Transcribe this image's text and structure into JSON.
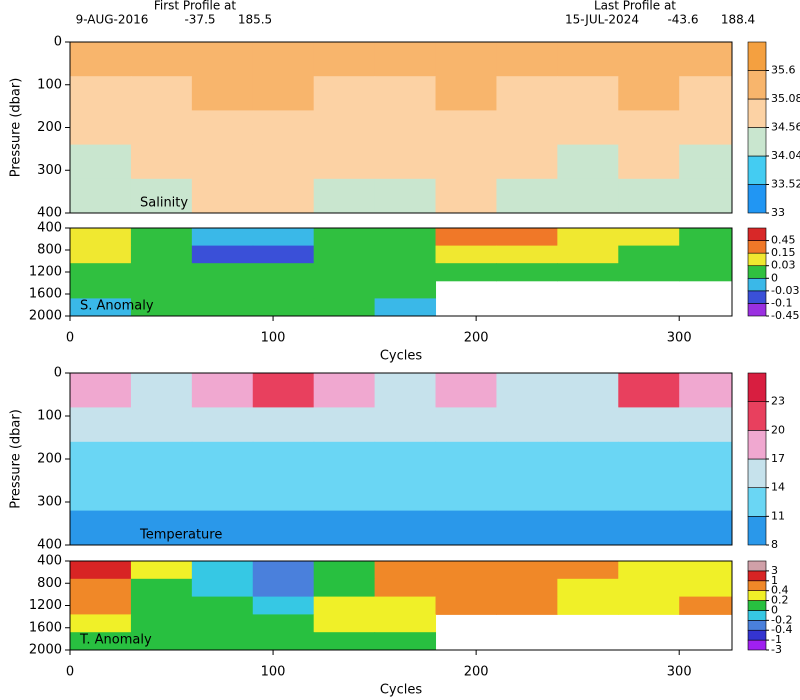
{
  "header": {
    "first_title": "First Profile at",
    "first_date": "9-AUG-2016",
    "first_lat": -37.5,
    "first_lon": 185.5,
    "last_title": "Last Profile at",
    "last_date": "15-JUL-2024",
    "last_lat": -43.6,
    "last_lon": 188.4
  },
  "chart_data": [
    {
      "type": "heatmap",
      "label": "Salinity",
      "ylabel": "Pressure (dbar)",
      "x": [
        15,
        45,
        75,
        105,
        135,
        165,
        195,
        225,
        255,
        285,
        315
      ],
      "y": [
        40,
        120,
        200,
        280,
        360
      ],
      "z": [
        [
          35.3,
          35.2,
          35.3,
          35.4,
          35.3,
          35.2,
          35.3,
          35.2,
          35.1,
          35.3,
          35.2
        ],
        [
          35.0,
          35.0,
          35.1,
          35.1,
          35.0,
          35.0,
          35.1,
          35.0,
          34.9,
          35.1,
          35.0
        ],
        [
          34.8,
          34.7,
          34.9,
          34.9,
          34.8,
          34.8,
          34.9,
          34.8,
          34.7,
          34.9,
          34.7
        ],
        [
          34.5,
          34.6,
          34.7,
          34.7,
          34.6,
          34.6,
          34.7,
          34.6,
          34.5,
          34.6,
          34.5
        ],
        [
          34.5,
          34.5,
          34.6,
          34.6,
          34.5,
          34.5,
          34.6,
          34.5,
          34.5,
          34.5,
          34.5
        ]
      ],
      "xlim": [
        0,
        326
      ],
      "ylim": [
        400,
        0
      ],
      "yticks": [
        0,
        100,
        200,
        300,
        400
      ],
      "colorbar": {
        "levels": [
          33,
          33.52,
          34.04,
          34.56,
          35.08,
          35.6
        ],
        "colors": [
          "#2196f3",
          "#44ccf2",
          "#c9e6cf",
          "#fcd2a4",
          "#f8b56c",
          "#f4a040"
        ]
      }
    },
    {
      "type": "heatmap",
      "label": "S. Anomaly",
      "xlabel": "Cycles",
      "x": [
        15,
        45,
        75,
        105,
        135,
        165,
        195,
        225,
        255,
        285,
        315
      ],
      "y": [
        560,
        880,
        1200,
        1520,
        1840
      ],
      "z": [
        [
          0.1,
          0.0,
          -0.02,
          -0.02,
          0.0,
          0.02,
          0.15,
          0.15,
          0.1,
          0.05,
          0.02
        ],
        [
          0.03,
          0.0,
          -0.05,
          -0.05,
          0.0,
          0.0,
          0.05,
          0.05,
          0.03,
          0.02,
          0.0
        ],
        [
          0.01,
          0.02,
          0.01,
          0.0,
          0.02,
          0.01,
          0.0,
          0.0,
          0.0,
          0.01,
          0.0
        ],
        [
          0.0,
          0.01,
          0.02,
          0.02,
          0.01,
          0.0,
          null,
          null,
          null,
          null,
          null
        ],
        [
          -0.01,
          0.0,
          0.0,
          0.01,
          0.0,
          -0.01,
          null,
          null,
          null,
          null,
          null
        ]
      ],
      "xlim": [
        0,
        326
      ],
      "ylim": [
        2000,
        400
      ],
      "xticks": [
        0,
        100,
        200,
        300
      ],
      "yticks": [
        400,
        800,
        1200,
        1600,
        2000
      ],
      "colorbar": {
        "levels": [
          -0.45,
          -0.1,
          -0.03,
          0,
          0.03,
          0.15,
          0.45
        ],
        "colors": [
          "#9a30e0",
          "#3a50d8",
          "#3ab8e8",
          "#30c040",
          "#f0e830",
          "#f07828",
          "#d82828"
        ]
      }
    },
    {
      "type": "heatmap",
      "label": "Temperature",
      "ylabel": "Pressure (dbar)",
      "x": [
        15,
        45,
        75,
        105,
        135,
        165,
        195,
        225,
        255,
        285,
        315
      ],
      "y": [
        40,
        120,
        200,
        280,
        360
      ],
      "z": [
        [
          19,
          16,
          18,
          20,
          17,
          15,
          19,
          15,
          16,
          20,
          17
        ],
        [
          15,
          14,
          15,
          16,
          15,
          14,
          15,
          14,
          14,
          15,
          14
        ],
        [
          13,
          12,
          13,
          13,
          12,
          12,
          13,
          12,
          12,
          13,
          12
        ],
        [
          11,
          11,
          12,
          11,
          11,
          11,
          12,
          11,
          11,
          11,
          11
        ],
        [
          10,
          10,
          10.5,
          10,
          10,
          10,
          10.5,
          10,
          10,
          10,
          10
        ]
      ],
      "xlim": [
        0,
        326
      ],
      "ylim": [
        400,
        0
      ],
      "yticks": [
        0,
        100,
        200,
        300,
        400
      ],
      "colorbar": {
        "levels": [
          8,
          11,
          14,
          17,
          20,
          23
        ],
        "colors": [
          "#2a98ea",
          "#6ad6f4",
          "#c6e2ec",
          "#f0a8d0",
          "#e8405e",
          "#d81e40"
        ]
      }
    },
    {
      "type": "heatmap",
      "label": "T. Anomaly",
      "xlabel": "Cycles",
      "x": [
        15,
        45,
        75,
        105,
        135,
        165,
        195,
        225,
        255,
        285,
        315
      ],
      "y": [
        560,
        880,
        1200,
        1520,
        1840
      ],
      "z": [
        [
          1,
          0.2,
          -0.2,
          -0.4,
          0.0,
          0.5,
          0.6,
          0.5,
          0.4,
          0.2,
          0.3
        ],
        [
          0.5,
          0.0,
          -0.2,
          -0.3,
          0.0,
          0.4,
          0.5,
          0.4,
          0.3,
          0.2,
          0.3
        ],
        [
          0.5,
          0.1,
          0.0,
          -0.2,
          0.2,
          0.3,
          0.4,
          0.4,
          0.3,
          0.2,
          0.4
        ],
        [
          0.3,
          0.1,
          0.0,
          0.0,
          0.2,
          0.3,
          null,
          null,
          null,
          null,
          null
        ],
        [
          0.0,
          0.1,
          0.0,
          0.0,
          0.1,
          0.0,
          null,
          null,
          null,
          null,
          null
        ]
      ],
      "xlim": [
        0,
        326
      ],
      "ylim": [
        2000,
        400
      ],
      "xticks": [
        0,
        100,
        200,
        300
      ],
      "yticks": [
        400,
        800,
        1200,
        1600,
        2000
      ],
      "colorbar": {
        "levels": [
          -3,
          -1,
          -0.4,
          -0.2,
          0,
          0.2,
          0.4,
          1,
          3
        ],
        "colors": [
          "#a020f0",
          "#3434d0",
          "#4a80dc",
          "#36c8e4",
          "#28c040",
          "#f0f028",
          "#f08828",
          "#d82424",
          "#d0a0a8"
        ]
      }
    }
  ]
}
